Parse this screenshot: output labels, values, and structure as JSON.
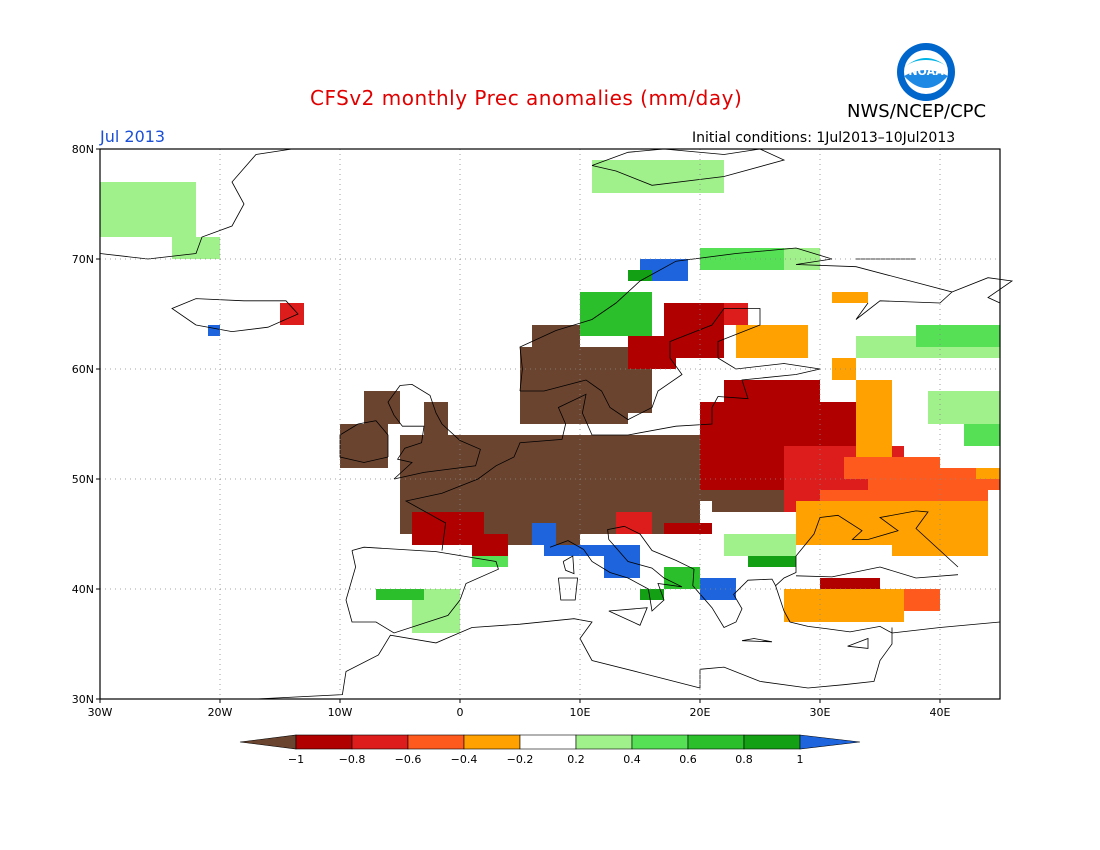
{
  "header": {
    "title": "CFSv2 monthly Prec anomalies (mm/day)",
    "title_color": "#e00000",
    "org": "NWS/NCEP/CPC",
    "month": "Jul 2013",
    "month_color": "#1a4fd6",
    "init": "Initial conditions: 1Jul2013–10Jul2013"
  },
  "logo": {
    "icon": "noaa-logo-icon",
    "text": "NOAA"
  },
  "axes": {
    "lon_labels": [
      "30W",
      "20W",
      "10W",
      "0",
      "10E",
      "20E",
      "30E",
      "40E"
    ],
    "lat_labels": [
      "80N",
      "70N",
      "60N",
      "50N",
      "40N",
      "30N"
    ]
  },
  "colorbar": {
    "labels": [
      "−1",
      "−0.8",
      "−0.6",
      "−0.4",
      "−0.2",
      "0.2",
      "0.4",
      "0.6",
      "0.8",
      "1"
    ],
    "colors": [
      "#6b4430",
      "#b00000",
      "#dd1c1c",
      "#ff5a1e",
      "#ffa100",
      "#ffffff",
      "#a0f08c",
      "#55e055",
      "#2bbf2b",
      "#14a014",
      "#1e64dc"
    ]
  },
  "map_colors": {
    "brown": "#6b4430",
    "darkred": "#b00000",
    "red": "#dd1c1c",
    "orangered": "#ff5a1e",
    "orange": "#ffa100",
    "lightgreen": "#a0f08c",
    "green": "#55e055",
    "midgreen": "#2bbf2b",
    "darkgreen": "#14a014",
    "blue": "#1e64dc"
  }
}
